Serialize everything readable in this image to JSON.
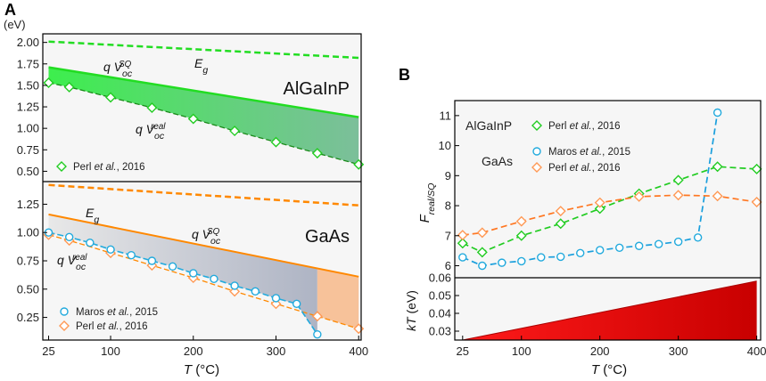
{
  "panel_a_letter": "A",
  "panel_b_letter": "B",
  "chart_data": [
    {
      "id": "A-top",
      "type": "line",
      "panel_label": "AlGaInP",
      "ylabel": "(eV)",
      "xlim": [
        18,
        403
      ],
      "ylim": [
        0.38,
        2.1
      ],
      "yticks": [
        0.5,
        0.75,
        1.0,
        1.25,
        1.5,
        1.75,
        2.0
      ],
      "ytick_labels": [
        "0.50",
        "0.75",
        "1.00",
        "1.25",
        "1.50",
        "1.75",
        "2.00"
      ],
      "grid": false,
      "lines": [
        {
          "label": "E",
          "sub": "g",
          "color": "#22dd22",
          "style": "dashed",
          "x": [
            25,
            400
          ],
          "y": [
            2.01,
            1.82
          ]
        },
        {
          "label": "q V",
          "sub": "oc",
          "sup": "SQ",
          "color": "#22dd22",
          "style": "solid",
          "x": [
            25,
            400
          ],
          "y": [
            1.71,
            1.13
          ]
        }
      ],
      "series": [
        {
          "name": "Perl et al., 2016",
          "marker": "diamond",
          "color": "#22cc22",
          "x": [
            25,
            50,
            100,
            150,
            200,
            250,
            300,
            350,
            400
          ],
          "y": [
            1.53,
            1.48,
            1.36,
            1.24,
            1.11,
            0.97,
            0.84,
            0.71,
            0.58
          ]
        }
      ],
      "curve_label": {
        "text": "q V",
        "sub": "oc",
        "sup": "real"
      },
      "legend": [
        {
          "marker": "diamond",
          "color": "#22cc22",
          "text_prefix": "Perl ",
          "text_ital": "et al.",
          "text_suffix": ", 2016"
        }
      ]
    },
    {
      "id": "A-bottom",
      "type": "line",
      "panel_label": "GaAs",
      "xlabel_var": "T",
      "xlabel_unit": " (°C)",
      "xlim": [
        18,
        403
      ],
      "ylim": [
        0.05,
        1.45
      ],
      "yticks": [
        0.25,
        0.5,
        0.75,
        1.0,
        1.25
      ],
      "ytick_labels": [
        "0.25",
        "0.50",
        "0.75",
        "1.00",
        "1.25"
      ],
      "xticks": [
        25,
        100,
        200,
        300,
        400
      ],
      "grid": false,
      "lines": [
        {
          "label": "E",
          "sub": "g",
          "color": "#ff8800",
          "style": "dashed",
          "x": [
            25,
            400
          ],
          "y": [
            1.42,
            1.24
          ]
        },
        {
          "label": "q V",
          "sub": "oc",
          "sup": "SQ",
          "color": "#ff8800",
          "style": "solid",
          "x": [
            25,
            400
          ],
          "y": [
            1.16,
            0.61
          ]
        }
      ],
      "series": [
        {
          "name": "Maros et al., 2015",
          "marker": "circle",
          "color": "#22aadd",
          "x": [
            25,
            50,
            75,
            100,
            125,
            150,
            175,
            200,
            225,
            250,
            275,
            300,
            325,
            350
          ],
          "y": [
            1.0,
            0.96,
            0.91,
            0.85,
            0.8,
            0.75,
            0.7,
            0.64,
            0.59,
            0.53,
            0.48,
            0.42,
            0.37,
            0.1
          ]
        },
        {
          "name": "Perl et al., 2016",
          "marker": "diamond",
          "color": "#ff9955",
          "x": [
            25,
            50,
            100,
            150,
            200,
            250,
            300,
            350,
            400
          ],
          "y": [
            0.98,
            0.93,
            0.82,
            0.71,
            0.6,
            0.48,
            0.37,
            0.26,
            0.15
          ]
        }
      ],
      "curve_label": {
        "text": "q V",
        "sub": "oc",
        "sup": "real"
      },
      "legend": [
        {
          "marker": "circle",
          "color": "#22aadd",
          "text_prefix": "Maros ",
          "text_ital": "et al.",
          "text_suffix": ", 2015"
        },
        {
          "marker": "diamond",
          "color": "#ff9955",
          "text_prefix": "Perl ",
          "text_ital": "et al.",
          "text_suffix": ", 2016"
        }
      ]
    },
    {
      "id": "B-top",
      "type": "line",
      "ylabel_main": "F",
      "ylabel_sub": "real/SQ",
      "xlim": [
        15,
        405
      ],
      "ylim": [
        5.6,
        11.5
      ],
      "yticks": [
        6,
        7,
        8,
        9,
        10,
        11
      ],
      "ytick_labels": [
        "6",
        "7",
        "8",
        "9",
        "10",
        "11"
      ],
      "grid": false,
      "labels": [
        "AlGaInP",
        "GaAs"
      ],
      "series": [
        {
          "name": "Perl et al., 2016 (AlGaInP)",
          "marker": "diamond",
          "color": "#22cc22",
          "x": [
            25,
            50,
            100,
            150,
            200,
            250,
            300,
            350,
            400
          ],
          "y": [
            6.75,
            6.45,
            7.0,
            7.4,
            7.9,
            8.4,
            8.85,
            9.3,
            9.22
          ]
        },
        {
          "name": "Maros et al., 2015",
          "marker": "circle",
          "color": "#22aadd",
          "x": [
            25,
            50,
            75,
            100,
            125,
            150,
            175,
            200,
            225,
            250,
            275,
            300,
            325,
            350
          ],
          "y": [
            6.28,
            6.0,
            6.1,
            6.15,
            6.28,
            6.3,
            6.42,
            6.52,
            6.6,
            6.66,
            6.72,
            6.8,
            6.94,
            11.1
          ]
        },
        {
          "name": "Perl et al., 2016 (GaAs)",
          "marker": "diamond",
          "color": "#ff9955",
          "x": [
            25,
            50,
            100,
            150,
            200,
            250,
            300,
            350,
            400
          ],
          "y": [
            7.02,
            7.1,
            7.48,
            7.82,
            8.1,
            8.3,
            8.35,
            8.32,
            8.12
          ]
        }
      ],
      "legend": [
        {
          "marker": "diamond",
          "color": "#22cc22",
          "text_prefix": "Perl ",
          "text_ital": "et al.",
          "text_suffix": ", 2016"
        },
        {
          "marker": "circle",
          "color": "#22aadd",
          "text_prefix": "Maros ",
          "text_ital": "et al.",
          "text_suffix": ", 2015"
        },
        {
          "marker": "diamond",
          "color": "#ff9955",
          "text_prefix": "Perl ",
          "text_ital": "et al.",
          "text_suffix": ", 2016"
        }
      ]
    },
    {
      "id": "B-bottom",
      "type": "area",
      "ylabel_main": "kT",
      "ylabel_unit": " (eV)",
      "xlabel_var": "T",
      "xlabel_unit": " (°C)",
      "xlim": [
        15,
        405
      ],
      "ylim": [
        0.025,
        0.06
      ],
      "yticks": [
        0.03,
        0.04,
        0.05,
        0.06
      ],
      "ytick_labels": [
        "0.03",
        "0.04",
        "0.05",
        "0.06"
      ],
      "xticks": [
        25,
        100,
        200,
        300,
        400
      ],
      "grid": false,
      "fill_color": "#ee0000",
      "x": [
        25,
        400
      ],
      "y": [
        0.0257,
        0.0581
      ]
    }
  ]
}
